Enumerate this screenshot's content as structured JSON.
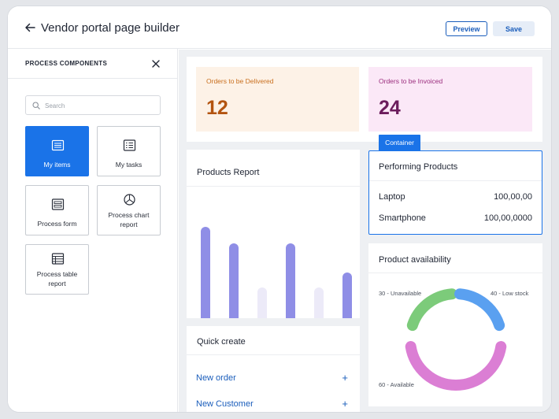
{
  "header": {
    "title": "Vendor portal page builder",
    "preview_label": "Preview",
    "save_label": "Save"
  },
  "sidebar": {
    "title": "PROCESS COMPONENTS",
    "search_placeholder": "Search",
    "components": [
      {
        "label": "My items",
        "icon": "list-card-icon",
        "active": true
      },
      {
        "label": "My tasks",
        "icon": "task-list-icon",
        "active": false
      },
      {
        "label": "Process form",
        "icon": "form-icon",
        "active": false
      },
      {
        "label_line1": "Process chart",
        "label_line2": "report",
        "icon": "pie-chart-icon",
        "active": false
      },
      {
        "label_line1": "Process table",
        "label_line2": "report",
        "icon": "table-icon",
        "active": false
      }
    ]
  },
  "kpis": [
    {
      "label": "Orders to be Delivered",
      "value": "12",
      "bg": "#fdf2e7",
      "label_color": "#c96f1e",
      "value_color": "#b35410"
    },
    {
      "label": "Orders to be Invoiced",
      "value": "24",
      "bg": "#fbe8f7",
      "label_color": "#9b2e7e",
      "value_color": "#6b1c5c"
    }
  ],
  "products_report": {
    "title": "Products Report",
    "bars": [
      {
        "value": 100,
        "color": "#8f8ee6"
      },
      {
        "value": 82,
        "color": "#8f8ee6"
      },
      {
        "value": 34,
        "color": "#eceaf8"
      },
      {
        "value": 82,
        "color": "#8f8ee6"
      },
      {
        "value": 34,
        "color": "#eceaf8"
      },
      {
        "value": 50,
        "color": "#8f8ee6"
      }
    ]
  },
  "container_tag": "Container",
  "performing_products": {
    "title": "Performing Products",
    "rows": [
      {
        "label": "Laptop",
        "value": "100,00,00"
      },
      {
        "label": "Smartphone",
        "value": "100,00,0000"
      }
    ]
  },
  "quick_create": {
    "title": "Quick create",
    "items": [
      {
        "label": "New order",
        "plus": "+"
      },
      {
        "label": "New Customer",
        "plus": "+"
      }
    ]
  },
  "availability": {
    "title": "Product availability",
    "segments": [
      {
        "label": "30 - Unavailable",
        "value": 30,
        "color": "#7ccb7a"
      },
      {
        "label": "40 - Low stock",
        "value": 40,
        "color": "#5aa0f0"
      },
      {
        "label": "60 - Available",
        "value": 60,
        "color": "#db7ed4"
      }
    ]
  }
}
